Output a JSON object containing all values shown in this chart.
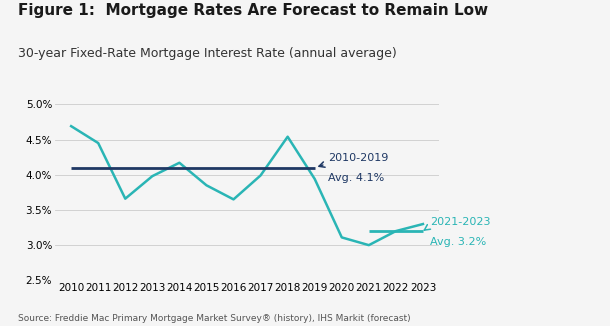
{
  "title": "Figure 1:  Mortgage Rates Are Forecast to Remain Low",
  "subtitle": "30-year Fixed-Rate Mortgage Interest Rate (annual average)",
  "source": "Source: Freddie Mac Primary Mortgage Market Survey® (history), IHS Markit (forecast)",
  "years": [
    2010,
    2011,
    2012,
    2013,
    2014,
    2015,
    2016,
    2017,
    2018,
    2019,
    2020,
    2021,
    2022,
    2023
  ],
  "rates": [
    4.69,
    4.45,
    3.66,
    3.98,
    4.17,
    3.85,
    3.65,
    3.99,
    4.54,
    3.94,
    3.11,
    3.0,
    3.2,
    3.3
  ],
  "line_color": "#2ab5b5",
  "avg_2010_2019_value": 4.1,
  "avg_2010_2019_label1": "2010-2019",
  "avg_2010_2019_label2": "Avg. 4.1%",
  "avg_2010_2019_color": "#1f3864",
  "avg_2021_2023_value": 3.2,
  "avg_2021_2023_label1": "2021-2023",
  "avg_2021_2023_label2": "Avg. 3.2%",
  "avg_2021_2023_color": "#2ab5b5",
  "ylim": [
    2.5,
    5.0
  ],
  "yticks": [
    2.5,
    3.0,
    3.5,
    4.0,
    4.5,
    5.0
  ],
  "xlim_left": 2009.4,
  "xlim_right": 2023.6,
  "background_color": "#f5f5f5",
  "title_fontsize": 11,
  "subtitle_fontsize": 9,
  "tick_fontsize": 7.5,
  "source_fontsize": 6.5
}
